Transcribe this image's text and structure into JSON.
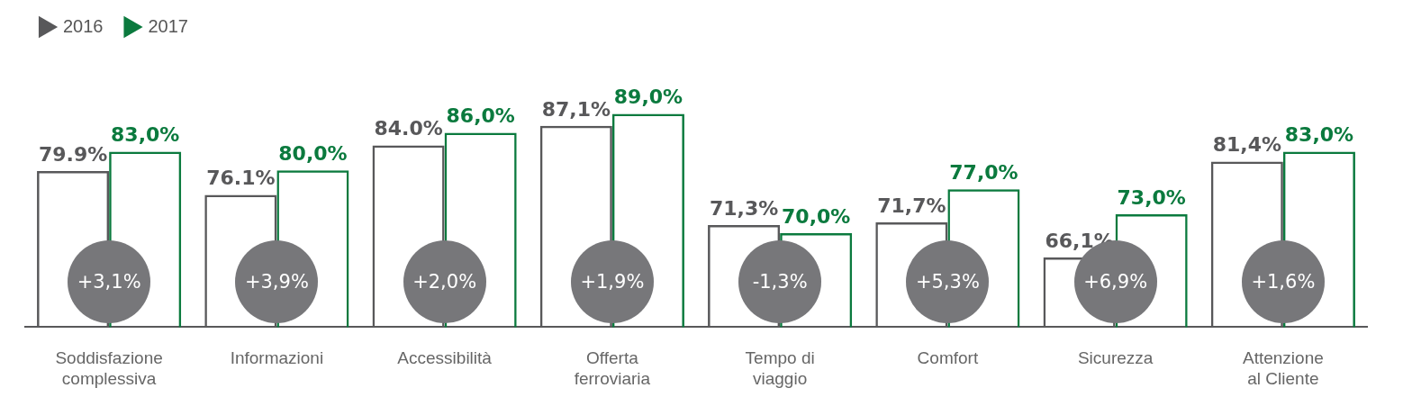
{
  "chart_data": {
    "type": "bar",
    "categories": [
      "Soddisfazione complessiva",
      "Informazioni",
      "Accessibilità",
      "Offerta ferroviaria",
      "Tempo di viaggio",
      "Comfort",
      "Sicurezza",
      "Attenzione al Cliente"
    ],
    "series": [
      {
        "name": "2016",
        "color": "#58585a",
        "values": [
          79.9,
          76.1,
          84.0,
          87.1,
          71.3,
          71.7,
          66.1,
          81.4
        ],
        "value_labels": [
          "79.9%",
          "76.1%",
          "84.0%",
          "87,1%",
          "71,3%",
          "71,7%",
          "66,1%",
          "81,4%"
        ]
      },
      {
        "name": "2017",
        "color": "#0b7a3e",
        "values": [
          83.0,
          80.0,
          86.0,
          89.0,
          70.0,
          77.0,
          73.0,
          83.0
        ],
        "value_labels": [
          "83,0%",
          "80,0%",
          "86,0%",
          "89,0%",
          "70,0%",
          "77,0%",
          "73,0%",
          "83,0%"
        ]
      }
    ],
    "tick_labels": "x",
    "grid": false,
    "legend": "top left",
    "annotations": [
      {
        "text": "+3,1%",
        "x": "Soddisfazione complessiva"
      },
      {
        "text": "+3,9%",
        "x": "Informazioni"
      },
      {
        "text": "+2,0%",
        "x": "Accessibilità"
      },
      {
        "text": "+1,9%",
        "x": "Offerta ferroviaria"
      },
      {
        "text": "-1,3%",
        "x": "Tempo di viaggio"
      },
      {
        "text": "+5,3%",
        "x": "Comfort"
      },
      {
        "text": "+6,9%",
        "x": "Sicurezza"
      },
      {
        "text": "+1,6%",
        "x": "Attenzione al Cliente"
      }
    ]
  }
}
